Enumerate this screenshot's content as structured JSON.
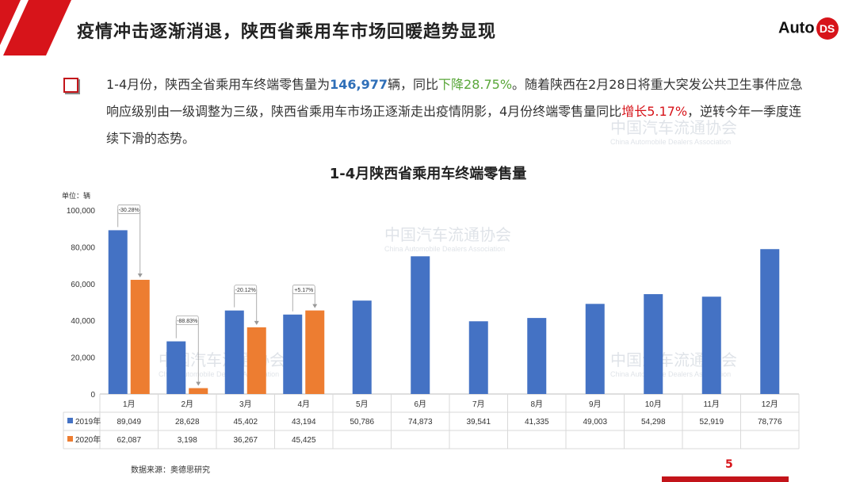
{
  "header": {
    "title": "疫情冲击逐渐消退，陕西省乘用车市场回暖趋势显现",
    "logo_auto": "Auto",
    "logo_ds": "DS",
    "accent": "#d7141a"
  },
  "intro": {
    "p1": "1-4月份，陕西全省乘用车终端零售量为",
    "v1": "146,977",
    "p2": "辆，同比",
    "v2": "下降28.75%",
    "p3": "。随着陕西在2月28日将重大突发公共卫生事件应急响应级别由一级调整为三级，陕西省乘用车市场正逐渐走出疫情阴影，4月份终端零售量同比",
    "v3": "增长5.17%",
    "p4": "，逆转今年一季度连续下滑的态势。"
  },
  "watermark": {
    "cn": "中国汽车流通协会",
    "en": "China Automobile Dealers Association"
  },
  "chart_data": {
    "type": "bar",
    "title": "1-4月陕西省乘用车终端零售量",
    "unit_label": "单位：辆",
    "ylim": [
      0,
      100000
    ],
    "yticks": [
      "0",
      "20,000",
      "40,000",
      "60,000",
      "80,000",
      "100,000"
    ],
    "categories": [
      "1月",
      "2月",
      "3月",
      "4月",
      "5月",
      "6月",
      "7月",
      "8月",
      "9月",
      "10月",
      "11月",
      "12月"
    ],
    "series": [
      {
        "name": "2019年",
        "color": "#4472c4",
        "values": [
          89049,
          28628,
          45402,
          43194,
          50786,
          74873,
          39541,
          41335,
          49003,
          54298,
          52919,
          78776
        ],
        "labels": [
          "89,049",
          "28,628",
          "45,402",
          "43,194",
          "50,786",
          "74,873",
          "39,541",
          "41,335",
          "49,003",
          "54,298",
          "52,919",
          "78,776"
        ]
      },
      {
        "name": "2020年",
        "color": "#ed7d31",
        "values": [
          62087,
          3198,
          36267,
          45425,
          null,
          null,
          null,
          null,
          null,
          null,
          null,
          null
        ],
        "labels": [
          "62,087",
          "3,198",
          "36,267",
          "45,425",
          "",
          "",
          "",
          "",
          "",
          "",
          "",
          ""
        ]
      }
    ],
    "annotations": [
      "-30.28%",
      "-88.83%",
      "-20.12%",
      "+5.17%"
    ],
    "grid": false,
    "legend": "data-table"
  },
  "footer": {
    "source": "数据来源：奥德思研究",
    "page": "5"
  }
}
